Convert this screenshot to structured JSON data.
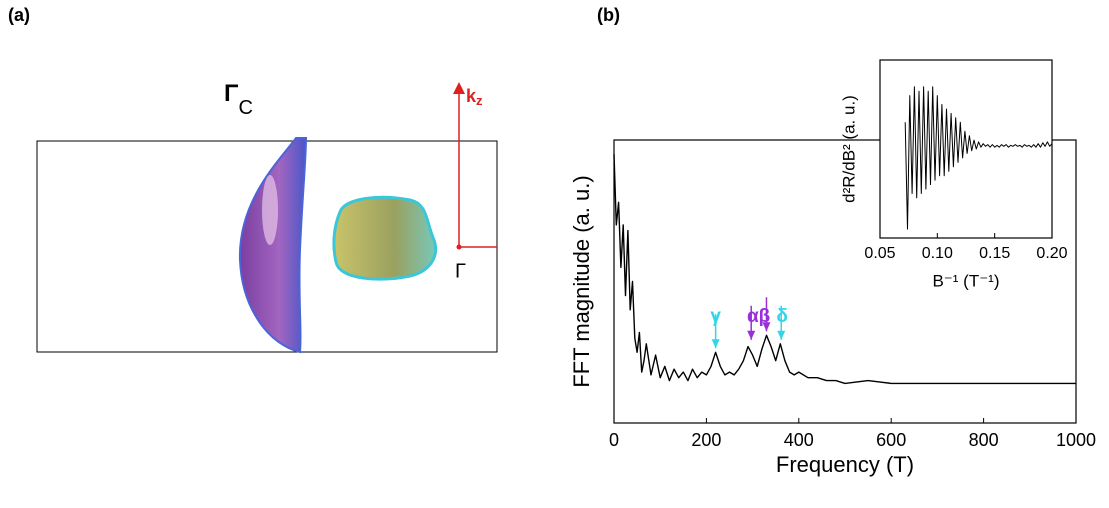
{
  "panel_a": {
    "label": "(a)",
    "gamma_c": {
      "symbol": "Γ",
      "subscript": "C"
    },
    "kz": {
      "symbol": "k",
      "subscript": "z"
    },
    "gamma": "Γ"
  },
  "panel_b": {
    "label": "(b)"
  },
  "chart_data": [
    {
      "type": "line",
      "xlabel": "Frequency (T)",
      "ylabel": "FFT magnitude (a. u.)",
      "xlim": [
        0,
        1000
      ],
      "xticks": [
        0,
        200,
        400,
        600,
        800,
        1000
      ],
      "ylim": [
        0,
        1
      ],
      "x": [
        0,
        5,
        10,
        15,
        20,
        25,
        30,
        35,
        40,
        45,
        50,
        55,
        60,
        65,
        70,
        80,
        90,
        100,
        110,
        120,
        130,
        140,
        150,
        160,
        170,
        180,
        190,
        200,
        210,
        220,
        230,
        240,
        250,
        260,
        270,
        280,
        290,
        300,
        310,
        320,
        330,
        340,
        350,
        360,
        370,
        380,
        390,
        400,
        420,
        440,
        460,
        480,
        500,
        550,
        600,
        650,
        700,
        750,
        800,
        850,
        900,
        950,
        1000
      ],
      "series": [
        {
          "color": "#000000",
          "values": [
            0.95,
            0.7,
            0.78,
            0.55,
            0.7,
            0.45,
            0.68,
            0.4,
            0.5,
            0.3,
            0.25,
            0.32,
            0.18,
            0.22,
            0.28,
            0.17,
            0.24,
            0.16,
            0.2,
            0.15,
            0.19,
            0.16,
            0.18,
            0.15,
            0.19,
            0.16,
            0.18,
            0.17,
            0.2,
            0.25,
            0.2,
            0.17,
            0.18,
            0.17,
            0.19,
            0.22,
            0.27,
            0.24,
            0.2,
            0.26,
            0.31,
            0.27,
            0.22,
            0.28,
            0.22,
            0.18,
            0.17,
            0.18,
            0.16,
            0.16,
            0.15,
            0.15,
            0.14,
            0.15,
            0.14,
            0.14,
            0.14,
            0.14,
            0.14,
            0.14,
            0.14,
            0.14,
            0.14
          ]
        }
      ],
      "annotations": [
        {
          "text": "γ",
          "x": 220,
          "color": "#33d6e8"
        },
        {
          "text": "αβ",
          "x": 313,
          "color": "#9a2fd8"
        },
        {
          "text": "δ",
          "x": 364,
          "color": "#33d6e8"
        }
      ],
      "arrows": [
        {
          "x": 220,
          "y": 0.25,
          "color": "#33d6e8"
        },
        {
          "x": 297,
          "y": 0.28,
          "color": "#9a2fd8"
        },
        {
          "x": 330,
          "y": 0.31,
          "color": "#9a2fd8"
        },
        {
          "x": 362,
          "y": 0.28,
          "color": "#33d6e8"
        }
      ]
    },
    {
      "type": "line",
      "xlabel": "B⁻¹ (T⁻¹)",
      "ylabel": "d²R/dB² (a. u.)",
      "xlim": [
        0.05,
        0.2
      ],
      "xticks": [
        {
          "value": 0.05,
          "label": "0.05"
        },
        {
          "value": 0.1,
          "label": "0.10"
        },
        {
          "value": 0.15,
          "label": "0.15"
        },
        {
          "value": 0.2,
          "label": "0.20"
        }
      ],
      "ylim": [
        -1,
        1
      ],
      "x": [
        0.072,
        0.074,
        0.076,
        0.078,
        0.08,
        0.082,
        0.084,
        0.086,
        0.088,
        0.09,
        0.092,
        0.094,
        0.096,
        0.098,
        0.1,
        0.102,
        0.104,
        0.106,
        0.108,
        0.11,
        0.112,
        0.114,
        0.116,
        0.118,
        0.12,
        0.122,
        0.124,
        0.126,
        0.128,
        0.13,
        0.132,
        0.134,
        0.136,
        0.138,
        0.14,
        0.142,
        0.144,
        0.146,
        0.148,
        0.15,
        0.152,
        0.154,
        0.156,
        0.158,
        0.16,
        0.162,
        0.164,
        0.166,
        0.168,
        0.17,
        0.172,
        0.174,
        0.176,
        0.178,
        0.18,
        0.182,
        0.184,
        0.186,
        0.188,
        0.19,
        0.192,
        0.194,
        0.196,
        0.198,
        0.2
      ],
      "series": [
        {
          "color": "#000000",
          "values": [
            0.3,
            -0.9,
            0.6,
            -0.5,
            0.7,
            -0.55,
            0.65,
            -0.5,
            0.7,
            -0.45,
            0.65,
            -0.4,
            0.7,
            -0.35,
            0.6,
            -0.3,
            0.5,
            -0.3,
            0.45,
            -0.25,
            0.4,
            -0.2,
            0.35,
            -0.15,
            0.3,
            -0.1,
            0.2,
            -0.05,
            0.15,
            -0.02,
            0.1,
            0.0,
            0.08,
            0.02,
            0.06,
            0.03,
            0.05,
            0.02,
            0.05,
            0.02,
            0.04,
            0.02,
            0.05,
            0.03,
            0.05,
            0.02,
            0.04,
            0.03,
            0.05,
            0.03,
            0.04,
            0.02,
            0.05,
            0.03,
            0.04,
            0.02,
            0.05,
            0.02,
            0.06,
            0.02,
            0.07,
            0.03,
            0.08,
            0.03,
            0.06
          ]
        }
      ]
    }
  ]
}
